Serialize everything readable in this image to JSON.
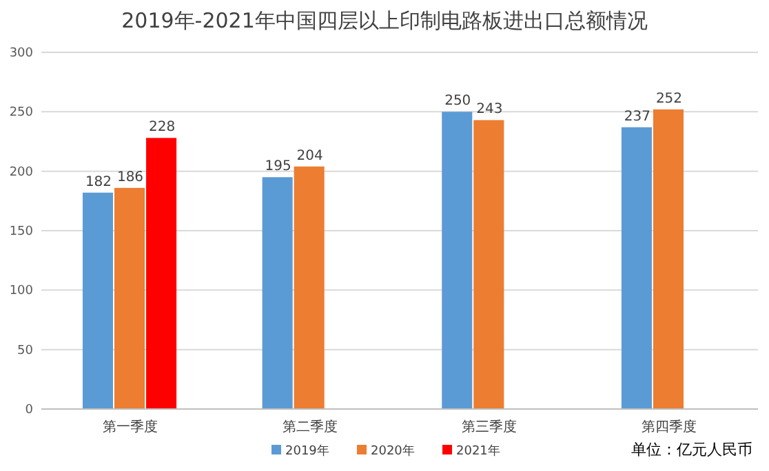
{
  "chart_data": {
    "type": "bar",
    "title": "2019年-2021年中国四层以上印制电路板进出口总额情况",
    "categories": [
      "第一季度",
      "第二季度",
      "第三季度",
      "第四季度"
    ],
    "series": [
      {
        "name": "2019年",
        "color": "#5b9bd5",
        "values": [
          182,
          195,
          250,
          237
        ]
      },
      {
        "name": "2020年",
        "color": "#ed7d31",
        "values": [
          186,
          204,
          243,
          252
        ]
      },
      {
        "name": "2021年",
        "color": "#ff0000",
        "values": [
          228,
          null,
          null,
          null
        ]
      }
    ],
    "ylim": [
      0,
      300
    ],
    "yticks": [
      0,
      50,
      100,
      150,
      200,
      250,
      300
    ],
    "grid": "y",
    "legend": "bottom",
    "data_labels": true,
    "annotations": [
      "单位：亿元人民币"
    ]
  }
}
